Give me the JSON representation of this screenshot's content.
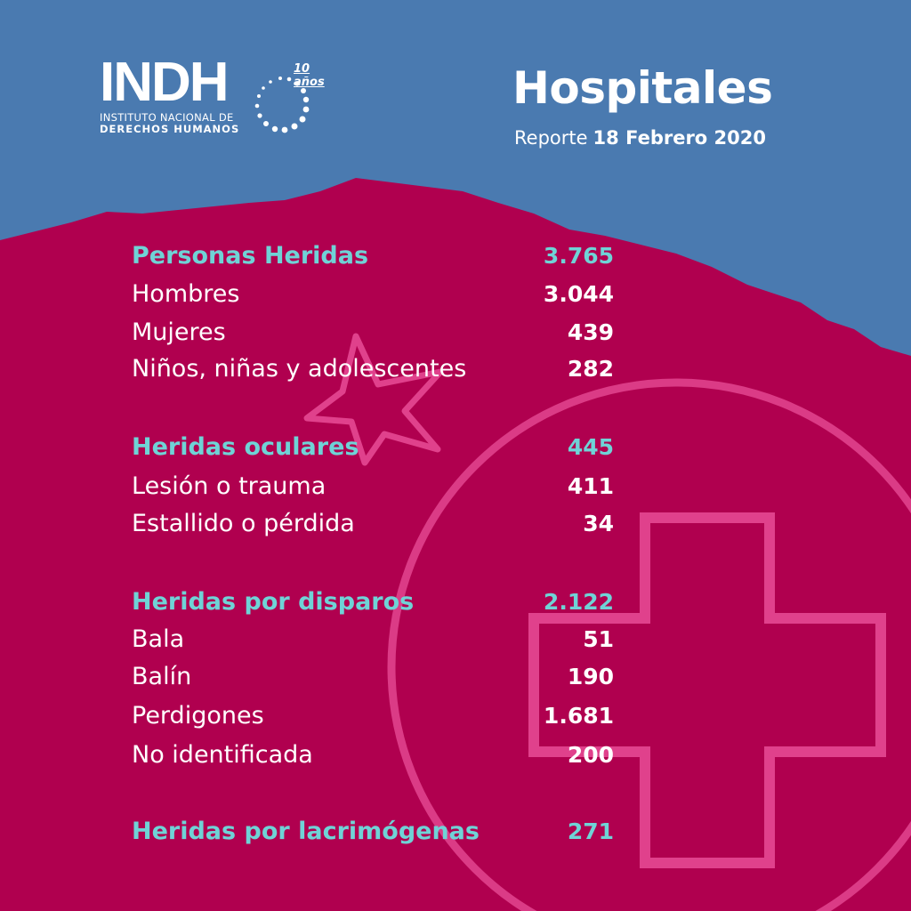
{
  "colors": {
    "top_background": "#4a7ab0",
    "main_background": "#b0004f",
    "accent": "#6fd3d6",
    "decoration": "#e0418c",
    "text": "#ffffff"
  },
  "logo": {
    "mark": "INDH",
    "anniversary": "10 años",
    "line1": "INSTITUTO NACIONAL DE",
    "line2": "DERECHOS HUMANOS"
  },
  "header": {
    "title": "Hospitales",
    "report_label": "Reporte",
    "date": "18 Febrero 2020"
  },
  "decoration_icons": [
    "star-icon",
    "medical-cross-icon"
  ],
  "sections": [
    {
      "label": "Personas Heridas",
      "value": "3.765",
      "items": [
        {
          "label": "Hombres",
          "value": "3.044"
        },
        {
          "label": "Mujeres",
          "value": "439"
        },
        {
          "label": "Niños, niñas y adolescentes",
          "value": "282"
        }
      ]
    },
    {
      "label": "Heridas oculares",
      "value": "445",
      "items": [
        {
          "label": "Lesión o trauma",
          "value": "411"
        },
        {
          "label": "Estallido o pérdida",
          "value": "34"
        }
      ]
    },
    {
      "label": "Heridas por disparos",
      "value": "2.122",
      "items": [
        {
          "label": "Bala",
          "value": "51"
        },
        {
          "label": "Balín",
          "value": "190"
        },
        {
          "label": "Perdigones",
          "value": "1.681"
        },
        {
          "label": "No identificada",
          "value": "200"
        }
      ]
    },
    {
      "label": "Heridas por lacrimógenas",
      "value": "271",
      "items": []
    }
  ]
}
